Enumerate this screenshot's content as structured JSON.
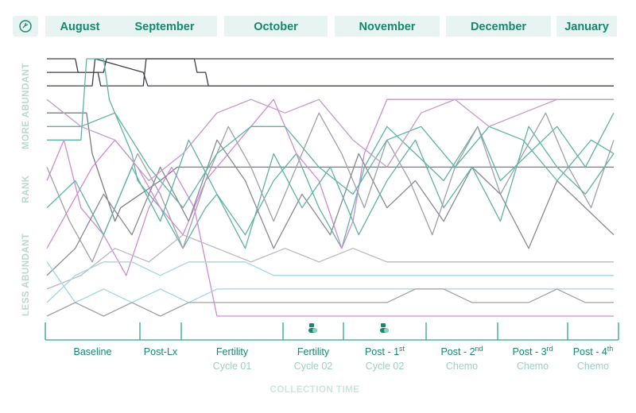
{
  "header": {
    "icon": "seedling-circle-icon",
    "months": [
      "August",
      "September",
      "October",
      "November",
      "December",
      "January"
    ]
  },
  "colors": {
    "accent": "#13896f",
    "month_bg": "#e8f4f1",
    "axis_text": "#b9d8d0",
    "phase_line": "#2ea58a"
  },
  "chart_data": {
    "type": "line",
    "ylabel_top": "MORE ABUNDANT",
    "ylabel_mid": "RANK",
    "ylabel_bottom": "LESS ABUNDANT",
    "xlabel": "COLLECTION TIME",
    "grid": false,
    "rank_count": 20,
    "phases": [
      {
        "line1": "Baseline",
        "line2": ""
      },
      {
        "line1": "Post-Lx",
        "line2": ""
      },
      {
        "line1": "Fertility",
        "line2": "Cycle 01"
      },
      {
        "line1": "Fertility",
        "line2": "Cycle 02",
        "icon": "pill-icon"
      },
      {
        "line1": "Post - 1",
        "sup": "st",
        "line2": "Cycle 02",
        "icon": "pill-icon"
      },
      {
        "line1": "Post - 2",
        "sup": "nd",
        "line2": "Chemo"
      },
      {
        "line1": "Post - 3",
        "sup": "rd",
        "line2": "Chemo"
      },
      {
        "line1": "Post - 4",
        "sup": "th",
        "line2": "Chemo"
      }
    ],
    "series": [
      {
        "color": "#3f3f46",
        "x": [
          0,
          50,
          55,
          100,
          105,
          165,
          170,
          1000
        ],
        "ranks": [
          1,
          1,
          2,
          2,
          1,
          1,
          1,
          1
        ]
      },
      {
        "color": "#3f3f46",
        "x": [
          0,
          90,
          95,
          170,
          175,
          260,
          265,
          280,
          285,
          1000
        ],
        "ranks": [
          2,
          2,
          3,
          3,
          1,
          1,
          2,
          2,
          3,
          3
        ]
      },
      {
        "color": "#3f3f46",
        "x": [
          0,
          80,
          85,
          170,
          178,
          1000
        ],
        "ranks": [
          3,
          3,
          1,
          2,
          3,
          3
        ]
      },
      {
        "color": "#7c7c84",
        "x": [
          0,
          70,
          80,
          120,
          130,
          200,
          230,
          1000
        ],
        "ranks": [
          5,
          5,
          8,
          13,
          12,
          10,
          9,
          9
        ]
      },
      {
        "color": "#5fb3a3",
        "x": [
          0,
          60,
          70,
          100,
          110,
          150,
          160,
          200,
          240,
          280,
          300,
          350,
          400,
          440,
          480,
          520,
          560,
          600,
          650,
          700,
          760,
          800,
          850,
          900,
          950,
          1000
        ],
        "ranks": [
          7,
          7,
          1,
          1,
          4,
          8,
          10,
          12,
          15,
          12,
          11,
          14,
          10,
          8,
          12,
          15,
          9,
          6,
          8,
          10,
          6,
          10,
          8,
          6,
          9,
          5
        ]
      },
      {
        "color": "#d08ad8",
        "x": [
          0,
          30,
          60,
          100,
          140,
          180,
          220,
          260,
          290,
          300,
          340,
          380,
          420,
          460,
          500,
          520,
          560,
          600,
          640,
          680,
          720,
          760,
          800,
          850,
          900,
          950,
          1000
        ],
        "ranks": [
          10,
          7,
          12,
          14,
          17,
          12,
          9,
          12,
          18,
          20,
          20,
          20,
          20,
          20,
          20,
          20,
          20,
          20,
          20,
          20,
          20,
          20,
          20,
          20,
          20,
          20,
          20
        ]
      },
      {
        "color": "#d08ad8",
        "x": [
          0,
          40,
          80,
          120,
          160,
          200,
          240,
          280,
          320,
          360,
          400,
          440,
          480,
          520,
          540,
          560,
          600,
          640,
          680,
          720,
          760,
          800,
          830,
          860,
          900,
          950,
          1000
        ],
        "ranks": [
          15,
          12,
          9,
          7,
          9,
          12,
          14,
          10,
          8,
          6,
          4,
          8,
          10,
          15,
          13,
          8,
          4,
          4,
          4,
          4,
          4,
          4,
          4,
          4,
          4,
          4,
          4
        ]
      },
      {
        "color": "#a0a0a8",
        "x": [
          0,
          40,
          80,
          120,
          160,
          200,
          240,
          280,
          320,
          360,
          400,
          440,
          480,
          520,
          560,
          600,
          640,
          680,
          720,
          760,
          800,
          840,
          880,
          920,
          960,
          1000
        ],
        "ranks": [
          9,
          13,
          16,
          12,
          8,
          11,
          15,
          10,
          6,
          9,
          13,
          9,
          5,
          8,
          12,
          7,
          10,
          14,
          9,
          6,
          11,
          8,
          5,
          9,
          12,
          7
        ]
      },
      {
        "color": "#8a8a92",
        "x": [
          0,
          50,
          100,
          150,
          200,
          250,
          300,
          350,
          400,
          450,
          500,
          550,
          600,
          650,
          700,
          750,
          800,
          850,
          900,
          950,
          1000
        ],
        "ranks": [
          17,
          15,
          11,
          14,
          9,
          13,
          7,
          10,
          15,
          11,
          14,
          8,
          12,
          10,
          13,
          9,
          11,
          15,
          10,
          12,
          14
        ]
      },
      {
        "color": "#5fb3a3",
        "x": [
          0,
          50,
          100,
          150,
          200,
          250,
          300,
          350,
          400,
          450,
          500,
          550,
          600,
          650,
          700,
          750,
          800,
          850,
          900,
          950,
          1000
        ],
        "ranks": [
          12,
          10,
          14,
          9,
          13,
          7,
          11,
          15,
          8,
          12,
          9,
          14,
          10,
          7,
          12,
          9,
          13,
          6,
          9,
          11,
          8
        ]
      },
      {
        "color": "#b8b8c0",
        "x": [
          0,
          60,
          120,
          180,
          240,
          300,
          360,
          420,
          480,
          540,
          600,
          660,
          720,
          780,
          840,
          900,
          960,
          1000
        ],
        "ranks": [
          18,
          17,
          15,
          16,
          14,
          15,
          16,
          15,
          16,
          15,
          16,
          16,
          16,
          16,
          16,
          16,
          16,
          16
        ]
      },
      {
        "color": "#9fd6e6",
        "x": [
          0,
          50,
          100,
          150,
          200,
          250,
          300,
          350,
          400,
          450,
          500,
          550,
          600,
          650,
          700,
          750,
          800,
          850,
          900,
          950,
          1000
        ],
        "ranks": [
          19,
          17,
          16,
          16,
          17,
          16,
          16,
          16,
          17,
          17,
          17,
          17,
          17,
          17,
          17,
          17,
          17,
          17,
          17,
          17,
          17
        ]
      },
      {
        "color": "#9fd6e6",
        "x": [
          0,
          50,
          100,
          150,
          200,
          250,
          300,
          350,
          400,
          450,
          500,
          550,
          600,
          650,
          700,
          750,
          800,
          850,
          900,
          950,
          1000
        ],
        "ranks": [
          16,
          19,
          18,
          19,
          18,
          19,
          18,
          18,
          18,
          18,
          18,
          18,
          18,
          18,
          18,
          18,
          18,
          18,
          18,
          18,
          18
        ]
      },
      {
        "color": "#a0a0a8",
        "x": [
          0,
          50,
          100,
          150,
          200,
          250,
          300,
          350,
          400,
          450,
          500,
          550,
          600,
          650,
          700,
          750,
          800,
          850,
          900,
          950,
          1000
        ],
        "ranks": [
          20,
          19,
          20,
          19,
          20,
          19,
          19,
          19,
          19,
          19,
          19,
          19,
          19,
          18,
          18,
          19,
          19,
          19,
          18,
          19,
          19
        ]
      },
      {
        "color": "#5fb3a3",
        "x": [
          0,
          60,
          120,
          180,
          240,
          300,
          360,
          420,
          480,
          540,
          600,
          660,
          720,
          780,
          840,
          900,
          960,
          1000
        ],
        "ranks": [
          6,
          6,
          5,
          9,
          12,
          8,
          6,
          6,
          9,
          11,
          7,
          6,
          9,
          6,
          7,
          10,
          7,
          8
        ]
      },
      {
        "color": "#c09ccb",
        "x": [
          0,
          60,
          120,
          180,
          240,
          300,
          360,
          420,
          480,
          540,
          600,
          660,
          720,
          780,
          840,
          900,
          960,
          1000
        ],
        "ranks": [
          4,
          6,
          7,
          10,
          8,
          5,
          4,
          5,
          4,
          7,
          9,
          5,
          4,
          6,
          5,
          4,
          4,
          4
        ]
      }
    ]
  }
}
